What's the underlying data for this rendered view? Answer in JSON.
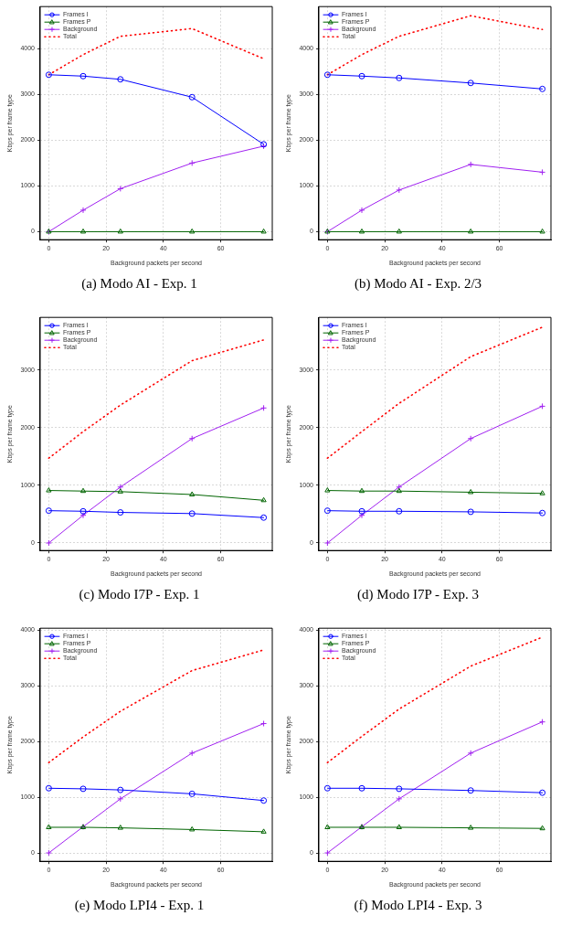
{
  "chart_data": [
    {
      "type": "line",
      "title": "(a) Modo AI - Exp. 1",
      "xlabel": "Background packets per second",
      "ylabel": "Kbps per frame type",
      "x": [
        0,
        12,
        25,
        50,
        75
      ],
      "xlim": [
        -3,
        78
      ],
      "xticks": [
        0,
        20,
        40,
        60
      ],
      "ylim": [
        -175,
        4920
      ],
      "yticks": [
        0,
        1000,
        2000,
        3000,
        4000
      ],
      "grid": true,
      "legend": "top left",
      "series": [
        {
          "name": "Frames I",
          "color": "#0000ff",
          "marker": "circle",
          "line_style": "solid",
          "values": [
            3430,
            3400,
            3330,
            2940,
            1910
          ]
        },
        {
          "name": "Frames P",
          "color": "#006400",
          "marker": "triangle",
          "line_style": "solid",
          "values": [
            0,
            0,
            0,
            0,
            0
          ]
        },
        {
          "name": "Background",
          "color": "#a020f0",
          "marker": "cross",
          "line_style": "solid",
          "values": [
            0,
            470,
            940,
            1500,
            1870
          ]
        },
        {
          "name": "Total",
          "color": "#ff0000",
          "marker": "none",
          "line_style": "dotted",
          "values": [
            3430,
            3870,
            4270,
            4440,
            3780
          ]
        }
      ]
    },
    {
      "type": "line",
      "title": "(b) Modo AI - Exp. 2/3",
      "xlabel": "Background packets per second",
      "ylabel": "Kbps per frame type",
      "x": [
        0,
        12,
        25,
        50,
        75
      ],
      "xlim": [
        -3,
        78
      ],
      "xticks": [
        0,
        20,
        40,
        60
      ],
      "ylim": [
        -175,
        4920
      ],
      "yticks": [
        0,
        1000,
        2000,
        3000,
        4000
      ],
      "grid": true,
      "legend": "top left",
      "series": [
        {
          "name": "Frames I",
          "color": "#0000ff",
          "marker": "circle",
          "line_style": "solid",
          "values": [
            3430,
            3400,
            3360,
            3250,
            3120
          ]
        },
        {
          "name": "Frames P",
          "color": "#006400",
          "marker": "triangle",
          "line_style": "solid",
          "values": [
            0,
            0,
            0,
            0,
            0
          ]
        },
        {
          "name": "Background",
          "color": "#a020f0",
          "marker": "cross",
          "line_style": "solid",
          "values": [
            0,
            470,
            910,
            1470,
            1300
          ]
        },
        {
          "name": "Total",
          "color": "#ff0000",
          "marker": "none",
          "line_style": "dotted",
          "values": [
            3430,
            3870,
            4270,
            4720,
            4420
          ]
        }
      ]
    },
    {
      "type": "line",
      "title": "(c) Modo I7P - Exp. 1",
      "xlabel": "Background packets per second",
      "ylabel": "Kbps per frame type",
      "x": [
        0,
        12,
        25,
        50,
        75
      ],
      "xlim": [
        -3,
        78
      ],
      "xticks": [
        0,
        20,
        40,
        60
      ],
      "ylim": [
        -130,
        3910
      ],
      "yticks": [
        0,
        1000,
        2000,
        3000
      ],
      "grid": true,
      "legend": "top left",
      "series": [
        {
          "name": "Frames I",
          "color": "#0000ff",
          "marker": "circle",
          "line_style": "solid",
          "values": [
            560,
            550,
            530,
            510,
            440
          ]
        },
        {
          "name": "Frames P",
          "color": "#006400",
          "marker": "triangle",
          "line_style": "solid",
          "values": [
            910,
            900,
            890,
            840,
            740
          ]
        },
        {
          "name": "Background",
          "color": "#a020f0",
          "marker": "cross",
          "line_style": "solid",
          "values": [
            0,
            480,
            970,
            1810,
            2340
          ]
        },
        {
          "name": "Total",
          "color": "#ff0000",
          "marker": "none",
          "line_style": "dotted",
          "values": [
            1470,
            1930,
            2390,
            3160,
            3520
          ]
        }
      ]
    },
    {
      "type": "line",
      "title": "(d) Modo I7P - Exp. 3",
      "xlabel": "Background packets per second",
      "ylabel": "Kbps per frame type",
      "x": [
        0,
        12,
        25,
        50,
        75
      ],
      "xlim": [
        -3,
        78
      ],
      "xticks": [
        0,
        20,
        40,
        60
      ],
      "ylim": [
        -130,
        3910
      ],
      "yticks": [
        0,
        1000,
        2000,
        3000
      ],
      "grid": true,
      "legend": "top left",
      "series": [
        {
          "name": "Frames I",
          "color": "#0000ff",
          "marker": "circle",
          "line_style": "solid",
          "values": [
            560,
            550,
            550,
            540,
            520
          ]
        },
        {
          "name": "Frames P",
          "color": "#006400",
          "marker": "triangle",
          "line_style": "solid",
          "values": [
            910,
            900,
            900,
            880,
            860
          ]
        },
        {
          "name": "Background",
          "color": "#a020f0",
          "marker": "cross",
          "line_style": "solid",
          "values": [
            0,
            480,
            970,
            1810,
            2370
          ]
        },
        {
          "name": "Total",
          "color": "#ff0000",
          "marker": "none",
          "line_style": "dotted",
          "values": [
            1470,
            1930,
            2420,
            3230,
            3740
          ]
        }
      ]
    },
    {
      "type": "line",
      "title": "(e) Modo LPI4 - Exp. 1",
      "xlabel": "Background packets per second",
      "ylabel": "Kbps per frame type",
      "x": [
        0,
        12,
        25,
        50,
        75
      ],
      "xlim": [
        -3,
        78
      ],
      "xticks": [
        0,
        20,
        40,
        60
      ],
      "ylim": [
        -150,
        4030
      ],
      "yticks": [
        0,
        1000,
        2000,
        3000,
        4000
      ],
      "grid": true,
      "legend": "top left",
      "series": [
        {
          "name": "Frames I",
          "color": "#0000ff",
          "marker": "circle",
          "line_style": "solid",
          "values": [
            1160,
            1150,
            1130,
            1060,
            940
          ]
        },
        {
          "name": "Frames P",
          "color": "#006400",
          "marker": "triangle",
          "line_style": "solid",
          "values": [
            460,
            460,
            450,
            420,
            380
          ]
        },
        {
          "name": "Background",
          "color": "#a020f0",
          "marker": "cross",
          "line_style": "solid",
          "values": [
            0,
            470,
            970,
            1790,
            2320
          ]
        },
        {
          "name": "Total",
          "color": "#ff0000",
          "marker": "none",
          "line_style": "dotted",
          "values": [
            1620,
            2080,
            2540,
            3270,
            3640
          ]
        }
      ]
    },
    {
      "type": "line",
      "title": "(f) Modo LPI4 - Exp. 3",
      "xlabel": "Background packets per second",
      "ylabel": "Kbps per frame type",
      "x": [
        0,
        12,
        25,
        50,
        75
      ],
      "xlim": [
        -3,
        78
      ],
      "xticks": [
        0,
        20,
        40,
        60
      ],
      "ylim": [
        -150,
        4030
      ],
      "yticks": [
        0,
        1000,
        2000,
        3000,
        4000
      ],
      "grid": true,
      "legend": "top left",
      "series": [
        {
          "name": "Frames I",
          "color": "#0000ff",
          "marker": "circle",
          "line_style": "solid",
          "values": [
            1160,
            1160,
            1150,
            1120,
            1080
          ]
        },
        {
          "name": "Frames P",
          "color": "#006400",
          "marker": "triangle",
          "line_style": "solid",
          "values": [
            460,
            460,
            460,
            450,
            440
          ]
        },
        {
          "name": "Background",
          "color": "#a020f0",
          "marker": "cross",
          "line_style": "solid",
          "values": [
            0,
            470,
            970,
            1790,
            2350
          ]
        },
        {
          "name": "Total",
          "color": "#ff0000",
          "marker": "none",
          "line_style": "dotted",
          "values": [
            1620,
            2090,
            2580,
            3350,
            3870
          ]
        }
      ]
    }
  ]
}
